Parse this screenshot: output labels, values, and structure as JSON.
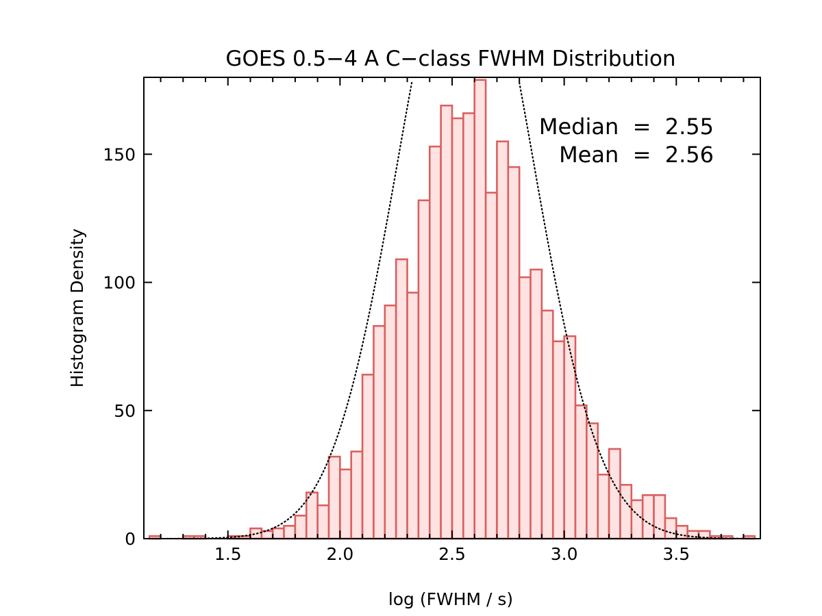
{
  "chart_data": {
    "type": "bar",
    "title": "GOES 0.5−4 A C−class FWHM Distribution",
    "xlabel": "log (FWHM / s)",
    "ylabel": "Histogram Density",
    "xlim": [
      1.125,
      3.875
    ],
    "ylim": [
      0,
      180
    ],
    "x_major_ticks": [
      1.5,
      2.0,
      2.5,
      3.0,
      3.5
    ],
    "x_tick_labels": [
      "1.5",
      "2.0",
      "2.5",
      "3.0",
      "3.5"
    ],
    "x_minor_ticks": [
      1.2,
      1.3,
      1.4,
      1.6,
      1.7,
      1.8,
      1.9,
      2.1,
      2.2,
      2.3,
      2.4,
      2.6,
      2.7,
      2.8,
      2.9,
      3.1,
      3.2,
      3.3,
      3.4,
      3.6,
      3.7,
      3.8
    ],
    "y_major_ticks": [
      0,
      50,
      100,
      150
    ],
    "y_tick_labels": [
      "0",
      "50",
      "100",
      "150"
    ],
    "bin_width": 0.05,
    "bin_starts": [
      1.15,
      1.2,
      1.25,
      1.3,
      1.35,
      1.4,
      1.45,
      1.5,
      1.55,
      1.6,
      1.65,
      1.7,
      1.75,
      1.8,
      1.85,
      1.9,
      1.95,
      2.0,
      2.05,
      2.1,
      2.15,
      2.2,
      2.25,
      2.3,
      2.35,
      2.4,
      2.45,
      2.5,
      2.55,
      2.6,
      2.65,
      2.7,
      2.75,
      2.8,
      2.85,
      2.9,
      2.95,
      3.0,
      3.05,
      3.1,
      3.15,
      3.2,
      3.25,
      3.3,
      3.35,
      3.4,
      3.45,
      3.5,
      3.55,
      3.6,
      3.65,
      3.7,
      3.75,
      3.8
    ],
    "values": [
      1,
      0,
      0,
      1,
      1,
      0,
      0,
      1,
      1,
      4,
      3,
      4,
      5,
      9,
      18,
      13,
      32,
      27,
      34,
      64,
      83,
      91,
      109,
      96,
      132,
      153,
      169,
      164,
      166,
      179,
      135,
      155,
      145,
      102,
      105,
      89,
      77,
      79,
      52,
      45,
      25,
      35,
      21,
      15,
      17,
      17,
      8,
      5,
      3,
      3,
      1,
      1,
      0,
      1
    ],
    "bar_fill_color": "#ffe2e2",
    "bar_edge_color": "#d9605e",
    "gaussian_overlay": {
      "style": "dotted",
      "mean": 2.56,
      "sigma": 0.3,
      "peak": 245
    },
    "annotations": [
      {
        "id": "median",
        "text": "Median  =  2.55"
      },
      {
        "id": "mean",
        "text": "Mean  =  2.56"
      }
    ]
  }
}
